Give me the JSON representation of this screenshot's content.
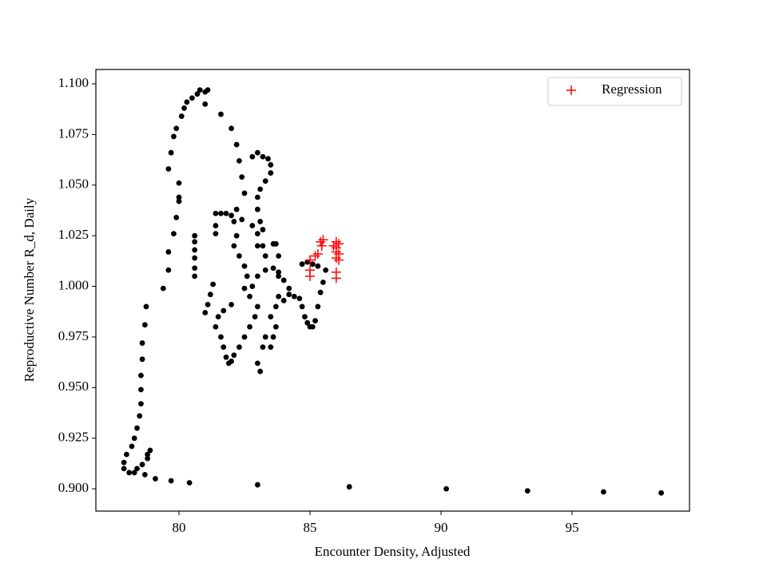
{
  "chart_data": {
    "type": "scatter",
    "xlabel": "Encounter Density, Adjusted",
    "ylabel": "Reproductive Number R_d, Daily",
    "xlim": [
      76.83,
      99.48
    ],
    "ylim": [
      0.889,
      1.1071
    ],
    "xticks": [
      80,
      85,
      90,
      95
    ],
    "yticks": [
      {
        "value": 0.9,
        "label": "0.900"
      },
      {
        "value": 0.925,
        "label": "0.925"
      },
      {
        "value": 0.95,
        "label": "0.950"
      },
      {
        "value": 0.975,
        "label": "0.975"
      },
      {
        "value": 1.0,
        "label": "1.000"
      },
      {
        "value": 1.025,
        "label": "1.025"
      },
      {
        "value": 1.05,
        "label": "1.050"
      },
      {
        "value": 1.075,
        "label": "1.075"
      },
      {
        "value": 1.1,
        "label": "1.100"
      }
    ],
    "legend": "upper right",
    "series": [
      {
        "color": "#000000",
        "marker": "o",
        "x": [
          98.4,
          96.2,
          93.3,
          90.2,
          86.5,
          83.0,
          80.4,
          79.7,
          79.1,
          78.7,
          78.3,
          78.1,
          77.9,
          77.9,
          78.0,
          78.2,
          78.3,
          78.4,
          78.5,
          78.55,
          78.55,
          78.55,
          78.6,
          78.6,
          78.7,
          78.75,
          78.8,
          78.9,
          78.8,
          78.6,
          78.4,
          79.4,
          79.6,
          79.6,
          79.8,
          79.9,
          80.0,
          79.6,
          79.7,
          79.8,
          79.9,
          80.1,
          80.2,
          80.3,
          80.5,
          80.7,
          80.8,
          81.0,
          81.1,
          81.0,
          80.0,
          80.0,
          80.6,
          80.6,
          80.6,
          80.6,
          80.6,
          80.6,
          81.6,
          82.0,
          82.2,
          82.3,
          82.4,
          82.5,
          81.4,
          81.6,
          81.8,
          82.0,
          81.4,
          81.4,
          82.1,
          82.2,
          82.1,
          82.3,
          82.5,
          82.6,
          82.2,
          82.4,
          82.8,
          83.0,
          83.2,
          83.3,
          82.8,
          83.0,
          83.2,
          83.4,
          83.5,
          83.5,
          83.3,
          83.1,
          83.0,
          83.0,
          83.1,
          83.2,
          83.0,
          81.0,
          81.1,
          81.2,
          81.3,
          81.4,
          81.6,
          81.7,
          81.8,
          81.9,
          82.0,
          82.1,
          82.3,
          82.5,
          82.7,
          82.9,
          83.0,
          82.7,
          82.5,
          82.0,
          81.7,
          81.5,
          82.8,
          83.0,
          83.3,
          83.6,
          83.8,
          84.0,
          84.2,
          84.0,
          83.7,
          83.5,
          83.3,
          83.2,
          83.0,
          83.1,
          83.5,
          83.6,
          83.7,
          83.8,
          83.7,
          83.6,
          83.8,
          83.8,
          84.2,
          84.4,
          84.6,
          84.7,
          84.8,
          84.9,
          85.0,
          85.1,
          85.2,
          85.3,
          85.4,
          85.5,
          85.6,
          84.7,
          84.9,
          85.1,
          85.3
        ],
        "values": [
          0.898,
          0.8985,
          0.899,
          0.9,
          0.901,
          0.902,
          0.903,
          0.904,
          0.905,
          0.907,
          0.908,
          0.908,
          0.91,
          0.913,
          0.917,
          0.921,
          0.925,
          0.93,
          0.936,
          0.942,
          0.949,
          0.956,
          0.964,
          0.972,
          0.981,
          0.99,
          0.917,
          0.919,
          0.915,
          0.912,
          0.91,
          0.999,
          1.008,
          1.017,
          1.026,
          1.034,
          1.042,
          1.058,
          1.066,
          1.074,
          1.078,
          1.084,
          1.088,
          1.091,
          1.093,
          1.095,
          1.097,
          1.096,
          1.097,
          1.09,
          1.051,
          1.044,
          1.025,
          1.022,
          1.018,
          1.014,
          1.009,
          1.005,
          1.085,
          1.078,
          1.07,
          1.062,
          1.054,
          1.046,
          1.036,
          1.036,
          1.036,
          1.035,
          1.026,
          1.03,
          1.032,
          1.025,
          1.02,
          1.015,
          1.01,
          1.005,
          1.038,
          1.033,
          1.03,
          1.026,
          1.02,
          1.015,
          1.064,
          1.066,
          1.064,
          1.063,
          1.06,
          1.056,
          1.052,
          1.048,
          1.044,
          1.038,
          1.032,
          1.028,
          1.02,
          0.987,
          0.991,
          0.996,
          1.001,
          0.98,
          0.975,
          0.97,
          0.965,
          0.962,
          0.963,
          0.966,
          0.97,
          0.975,
          0.98,
          0.985,
          0.99,
          0.995,
          0.999,
          0.991,
          0.988,
          0.985,
          1.0,
          1.005,
          1.008,
          1.009,
          1.007,
          1.003,
          0.999,
          0.993,
          0.99,
          0.985,
          0.975,
          0.97,
          0.962,
          0.958,
          0.97,
          0.975,
          0.98,
          0.995,
          1.021,
          1.021,
          1.015,
          1.005,
          0.996,
          0.995,
          0.994,
          0.99,
          0.985,
          0.982,
          0.98,
          0.98,
          0.983,
          0.99,
          0.997,
          1.002,
          1.008,
          1.011,
          1.012,
          1.011,
          1.01
        ]
      },
      {
        "name": "Regression",
        "color": "#ff0000",
        "marker": "+",
        "x": [
          85.4,
          85.5,
          85.45,
          85.3,
          85.2,
          85.0,
          85.0,
          85.0,
          86.0,
          86.1,
          86.0,
          86.0,
          86.1,
          86.0,
          86.1,
          86.0,
          86.0,
          85.9
        ],
        "values": [
          1.022,
          1.023,
          1.02,
          1.016,
          1.015,
          1.013,
          1.008,
          1.005,
          1.022,
          1.021,
          1.019,
          1.017,
          1.016,
          1.014,
          1.013,
          1.007,
          1.004,
          1.02
        ]
      }
    ]
  }
}
